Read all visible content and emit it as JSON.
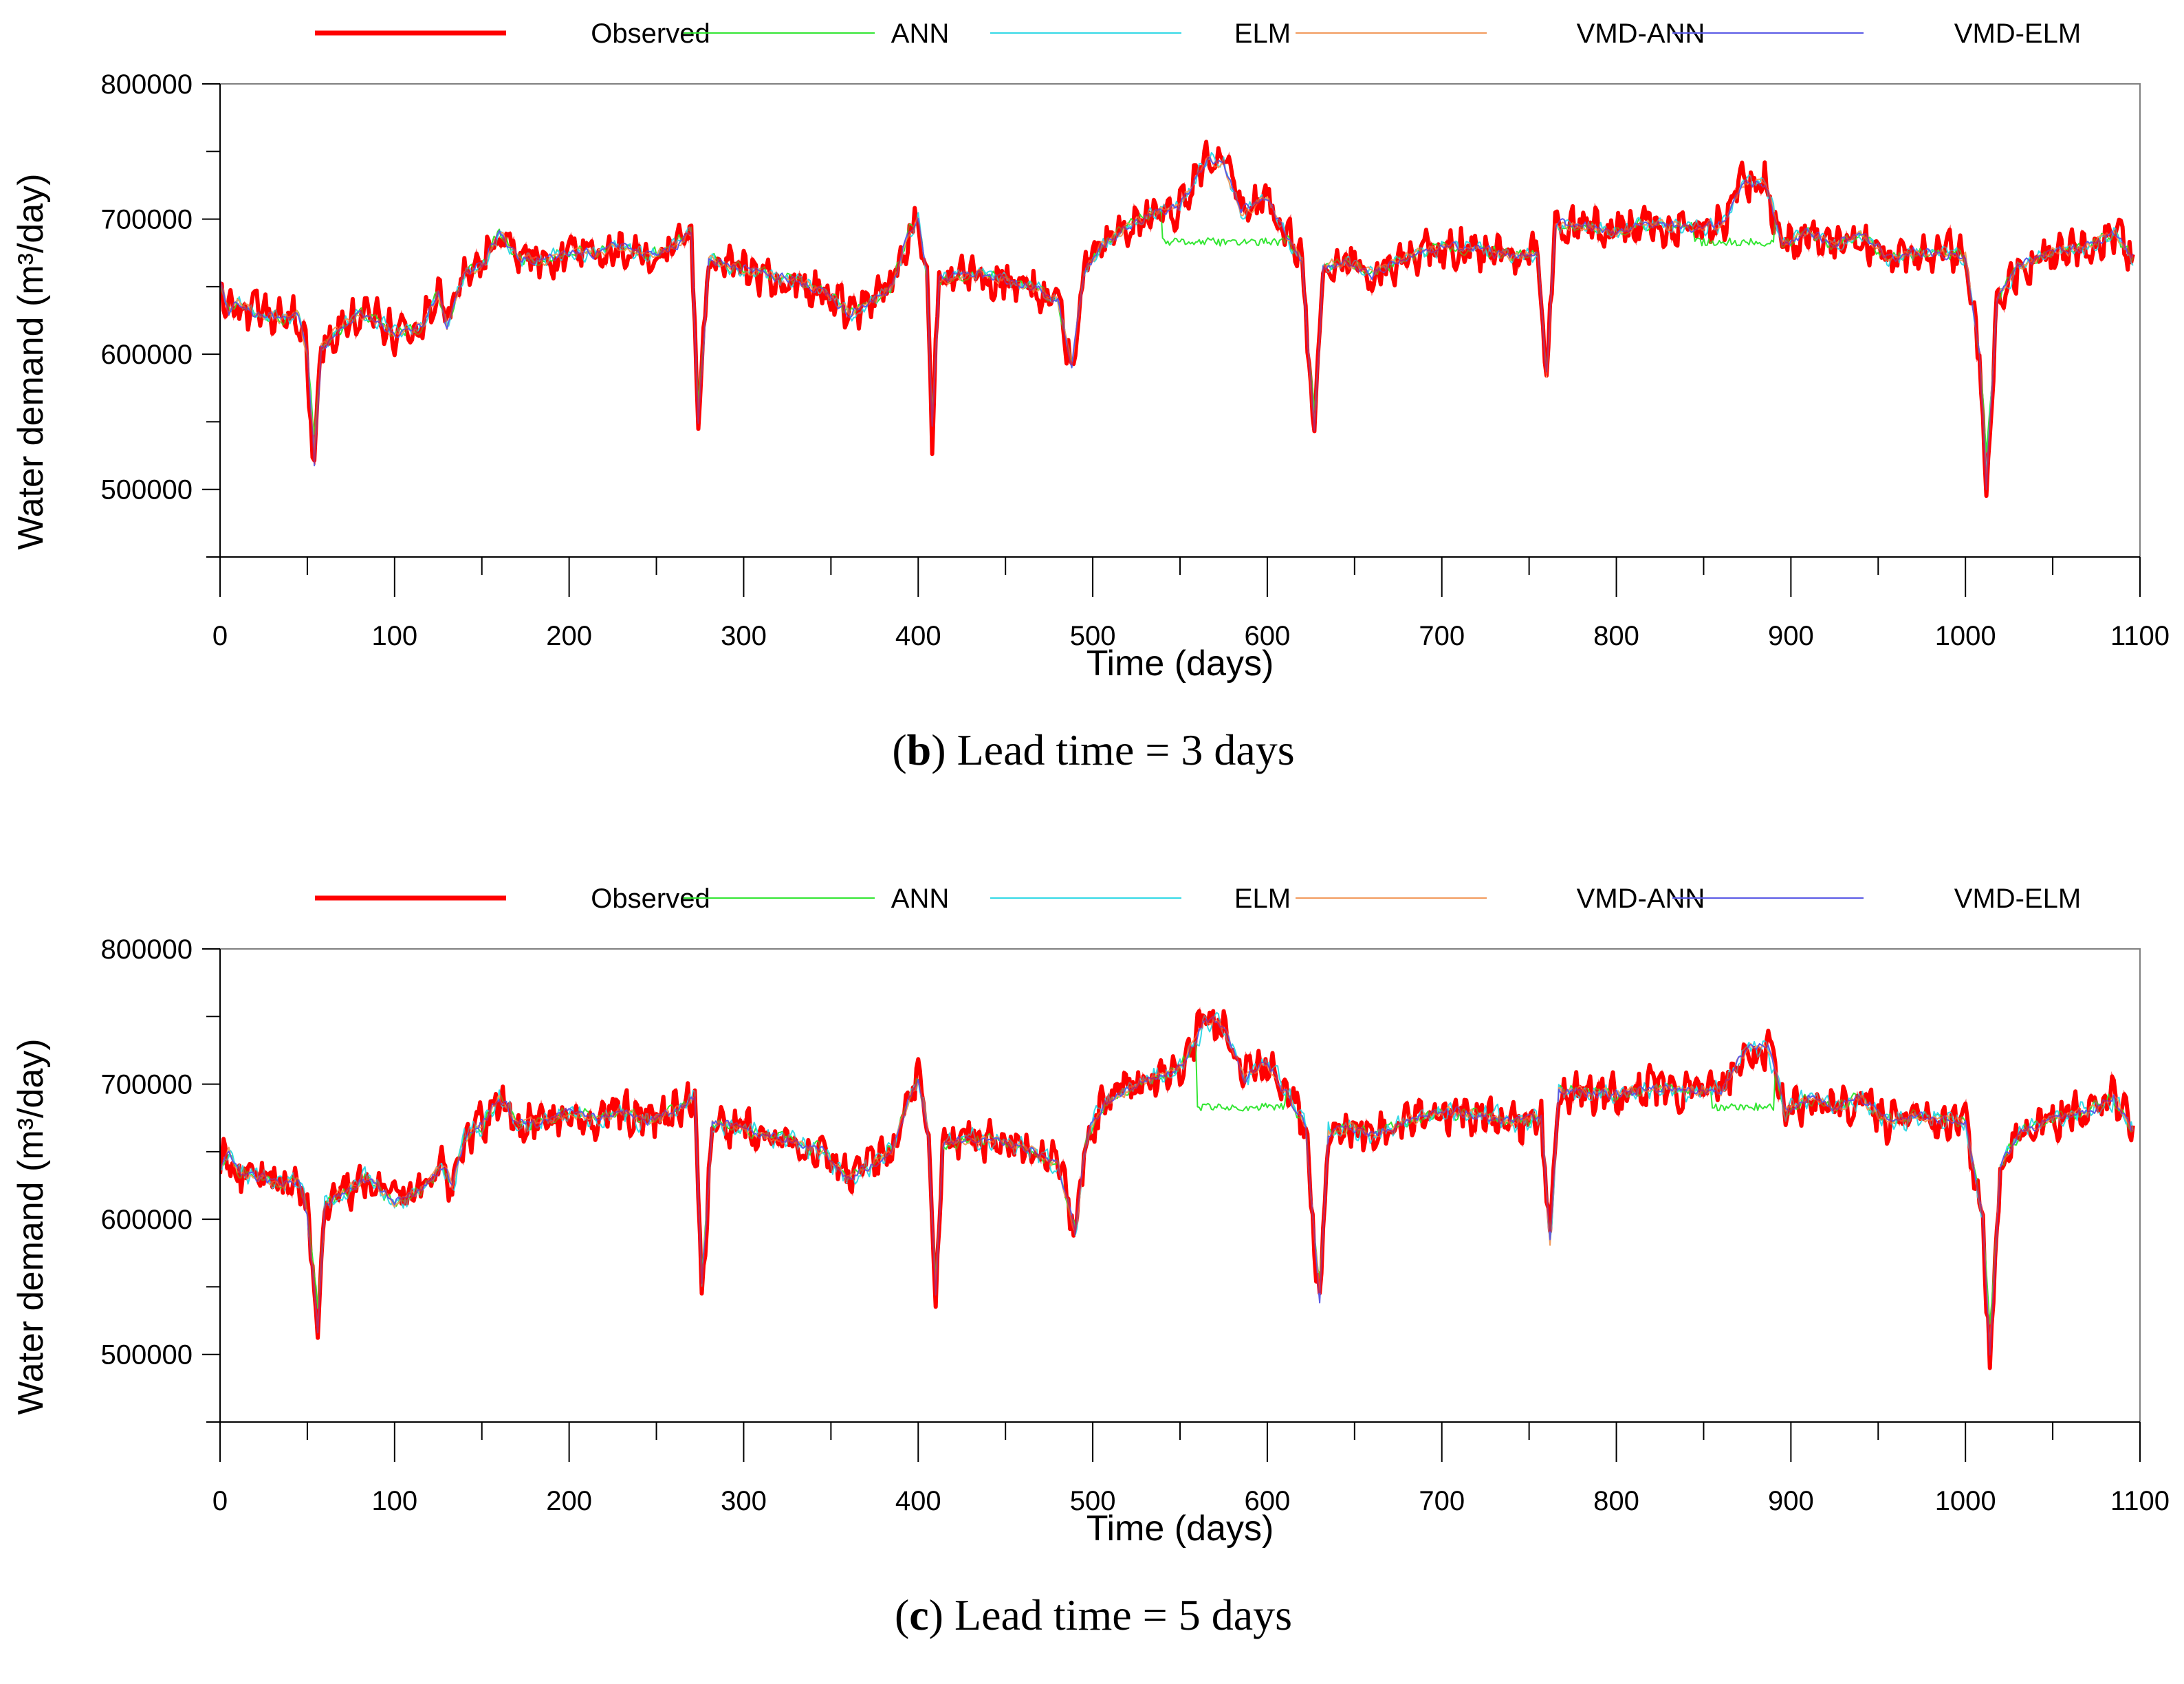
{
  "legend": [
    {
      "name": "Observed",
      "color": "#ff0000",
      "width": 7
    },
    {
      "name": "ANN",
      "color": "#33e633",
      "width": 2
    },
    {
      "name": "ELM",
      "color": "#33d9e6",
      "width": 2
    },
    {
      "name": "VMD-ANN",
      "color": "#f29a5c",
      "width": 2
    },
    {
      "name": "VMD-ELM",
      "color": "#5a5ae6",
      "width": 2
    }
  ],
  "captions": [
    {
      "open": "(",
      "letter": "b",
      "close": ")",
      "text": " Lead time = 3 days"
    },
    {
      "open": "(",
      "letter": "c",
      "close": ")",
      "text": " Lead time = 5 days"
    }
  ],
  "chart_data": [
    {
      "type": "line",
      "title": "(b) Lead time = 3 days",
      "xlabel": "Time (days)",
      "ylabel": "Water demand (m³/day)",
      "xlim": [
        0,
        1100
      ],
      "ylim": [
        450000,
        800000
      ],
      "xticks": [
        "0",
        "100",
        "200",
        "300",
        "400",
        "500",
        "600",
        "700",
        "800",
        "900",
        "1000",
        "1100"
      ],
      "yticks": [
        "500000",
        "600000",
        "700000",
        "800000"
      ],
      "observed_points": [
        [
          0,
          655000
        ],
        [
          5,
          632000
        ],
        [
          10,
          640000
        ],
        [
          20,
          630000
        ],
        [
          30,
          628000
        ],
        [
          35,
          625000
        ],
        [
          45,
          630000
        ],
        [
          50,
          600000
        ],
        [
          54,
          510000
        ],
        [
          58,
          605000
        ],
        [
          65,
          615000
        ],
        [
          80,
          630000
        ],
        [
          90,
          625000
        ],
        [
          100,
          615000
        ],
        [
          115,
          620000
        ],
        [
          125,
          645000
        ],
        [
          130,
          620000
        ],
        [
          140,
          660000
        ],
        [
          150,
          665000
        ],
        [
          160,
          690000
        ],
        [
          170,
          672000
        ],
        [
          185,
          670000
        ],
        [
          200,
          675000
        ],
        [
          215,
          675000
        ],
        [
          230,
          680000
        ],
        [
          245,
          672000
        ],
        [
          260,
          680000
        ],
        [
          270,
          690000
        ],
        [
          274,
          545000
        ],
        [
          280,
          670000
        ],
        [
          290,
          665000
        ],
        [
          310,
          660000
        ],
        [
          330,
          655000
        ],
        [
          345,
          648000
        ],
        [
          360,
          630000
        ],
        [
          375,
          640000
        ],
        [
          385,
          650000
        ],
        [
          395,
          690000
        ],
        [
          400,
          700000
        ],
        [
          405,
          660000
        ],
        [
          408,
          540000
        ],
        [
          412,
          655000
        ],
        [
          430,
          660000
        ],
        [
          450,
          655000
        ],
        [
          465,
          650000
        ],
        [
          480,
          640000
        ],
        [
          488,
          590000
        ],
        [
          495,
          660000
        ],
        [
          505,
          680000
        ],
        [
          520,
          695000
        ],
        [
          535,
          705000
        ],
        [
          550,
          710000
        ],
        [
          565,
          745000
        ],
        [
          575,
          740000
        ],
        [
          585,
          705000
        ],
        [
          600,
          715000
        ],
        [
          612,
          685000
        ],
        [
          620,
          670000
        ],
        [
          627,
          535000
        ],
        [
          632,
          665000
        ],
        [
          645,
          668000
        ],
        [
          660,
          660000
        ],
        [
          680,
          672000
        ],
        [
          700,
          680000
        ],
        [
          720,
          678000
        ],
        [
          740,
          672000
        ],
        [
          755,
          675000
        ],
        [
          760,
          582000
        ],
        [
          765,
          695000
        ],
        [
          780,
          695000
        ],
        [
          800,
          690000
        ],
        [
          820,
          697000
        ],
        [
          840,
          693000
        ],
        [
          860,
          695000
        ],
        [
          872,
          725000
        ],
        [
          885,
          728000
        ],
        [
          895,
          680000
        ],
        [
          910,
          690000
        ],
        [
          925,
          680000
        ],
        [
          940,
          690000
        ],
        [
          955,
          672000
        ],
        [
          970,
          675000
        ],
        [
          985,
          675000
        ],
        [
          1000,
          672000
        ],
        [
          1008,
          600000
        ],
        [
          1012,
          490000
        ],
        [
          1018,
          640000
        ],
        [
          1030,
          665000
        ],
        [
          1050,
          675000
        ],
        [
          1070,
          680000
        ],
        [
          1085,
          690000
        ],
        [
          1095,
          672000
        ]
      ],
      "note": "Modelled series (ANN, ELM, VMD-ANN, VMD-ELM) follow the observed series closely; ANN flattens near 680000–690000 around days 530–610 and 850–890."
    },
    {
      "type": "line",
      "title": "(c) Lead time = 5 days",
      "xlabel": "Time (days)",
      "ylabel": "Water demand (m³/day)",
      "xlim": [
        0,
        1100
      ],
      "ylim": [
        450000,
        800000
      ],
      "xticks": [
        "0",
        "100",
        "200",
        "300",
        "400",
        "500",
        "600",
        "700",
        "800",
        "900",
        "1000",
        "1100"
      ],
      "yticks": [
        "500000",
        "600000",
        "700000",
        "800000"
      ],
      "observed_points": [
        [
          0,
          640000
        ],
        [
          5,
          650000
        ],
        [
          10,
          635000
        ],
        [
          20,
          632000
        ],
        [
          30,
          628000
        ],
        [
          35,
          625000
        ],
        [
          45,
          630000
        ],
        [
          50,
          605000
        ],
        [
          56,
          510000
        ],
        [
          60,
          610000
        ],
        [
          70,
          620000
        ],
        [
          85,
          630000
        ],
        [
          100,
          612000
        ],
        [
          115,
          622000
        ],
        [
          128,
          640000
        ],
        [
          133,
          625000
        ],
        [
          140,
          660000
        ],
        [
          150,
          670000
        ],
        [
          160,
          690000
        ],
        [
          170,
          672000
        ],
        [
          185,
          672000
        ],
        [
          200,
          680000
        ],
        [
          215,
          675000
        ],
        [
          230,
          680000
        ],
        [
          245,
          672000
        ],
        [
          260,
          680000
        ],
        [
          272,
          690000
        ],
        [
          276,
          545000
        ],
        [
          282,
          672000
        ],
        [
          295,
          668000
        ],
        [
          310,
          662000
        ],
        [
          330,
          658000
        ],
        [
          345,
          650000
        ],
        [
          360,
          630000
        ],
        [
          375,
          642000
        ],
        [
          385,
          652000
        ],
        [
          395,
          690000
        ],
        [
          400,
          705000
        ],
        [
          406,
          660000
        ],
        [
          410,
          540000
        ],
        [
          414,
          655000
        ],
        [
          430,
          660000
        ],
        [
          450,
          657000
        ],
        [
          465,
          650000
        ],
        [
          480,
          640000
        ],
        [
          490,
          590000
        ],
        [
          497,
          665000
        ],
        [
          507,
          685000
        ],
        [
          520,
          695000
        ],
        [
          535,
          705000
        ],
        [
          550,
          712000
        ],
        [
          565,
          748000
        ],
        [
          575,
          742000
        ],
        [
          587,
          705000
        ],
        [
          600,
          715000
        ],
        [
          614,
          685000
        ],
        [
          622,
          670000
        ],
        [
          630,
          535000
        ],
        [
          635,
          665000
        ],
        [
          648,
          668000
        ],
        [
          660,
          662000
        ],
        [
          680,
          672000
        ],
        [
          700,
          680000
        ],
        [
          720,
          678000
        ],
        [
          740,
          672000
        ],
        [
          757,
          675000
        ],
        [
          762,
          582000
        ],
        [
          767,
          695000
        ],
        [
          780,
          695000
        ],
        [
          800,
          692000
        ],
        [
          820,
          697000
        ],
        [
          840,
          695000
        ],
        [
          860,
          695000
        ],
        [
          874,
          725000
        ],
        [
          887,
          728000
        ],
        [
          897,
          680000
        ],
        [
          910,
          690000
        ],
        [
          925,
          682000
        ],
        [
          940,
          690000
        ],
        [
          955,
          672000
        ],
        [
          970,
          675000
        ],
        [
          985,
          675000
        ],
        [
          1000,
          672000
        ],
        [
          1010,
          600000
        ],
        [
          1014,
          490000
        ],
        [
          1020,
          640000
        ],
        [
          1032,
          665000
        ],
        [
          1050,
          675000
        ],
        [
          1070,
          680000
        ],
        [
          1085,
          690000
        ],
        [
          1095,
          665000
        ]
      ],
      "note": "Modelled series (ANN, ELM, VMD-ANN, VMD-ELM) follow the observed series closely; ELM shows deeper dips near days 50, 270, 400, 630 and 1010."
    }
  ]
}
